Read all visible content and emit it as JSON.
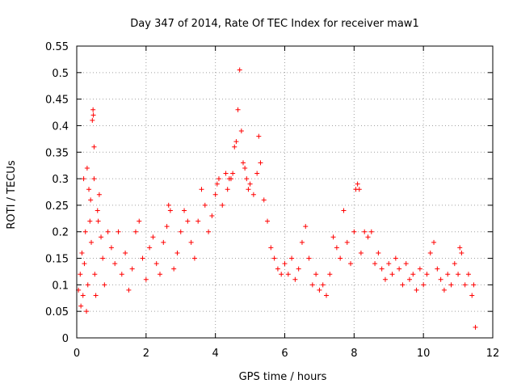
{
  "chart_data": {
    "type": "scatter",
    "title": "Day 347 of 2014, Rate Of TEC Index for receiver maw1",
    "xlabel": "GPS time / hours",
    "ylabel": "ROTI / TECUs",
    "xlim": [
      0,
      12
    ],
    "ylim": [
      0,
      0.55
    ],
    "xticks": [
      "0",
      "2",
      "4",
      "6",
      "8",
      "10",
      "12"
    ],
    "yticks": [
      "0",
      "0.05",
      "0.1",
      "0.15",
      "0.2",
      "0.25",
      "0.3",
      "0.35",
      "0.4",
      "0.45",
      "0.5",
      "0.55"
    ],
    "grid": true,
    "marker": "+",
    "color": "#ff0000",
    "series": [
      {
        "name": "ROTI",
        "points": [
          [
            0.05,
            0.09
          ],
          [
            0.1,
            0.12
          ],
          [
            0.12,
            0.06
          ],
          [
            0.15,
            0.16
          ],
          [
            0.18,
            0.08
          ],
          [
            0.2,
            0.3
          ],
          [
            0.22,
            0.14
          ],
          [
            0.25,
            0.2
          ],
          [
            0.28,
            0.05
          ],
          [
            0.3,
            0.32
          ],
          [
            0.32,
            0.1
          ],
          [
            0.35,
            0.28
          ],
          [
            0.38,
            0.22
          ],
          [
            0.4,
            0.26
          ],
          [
            0.42,
            0.18
          ],
          [
            0.45,
            0.41
          ],
          [
            0.47,
            0.43
          ],
          [
            0.48,
            0.42
          ],
          [
            0.5,
            0.36
          ],
          [
            0.5,
            0.3
          ],
          [
            0.52,
            0.12
          ],
          [
            0.55,
            0.08
          ],
          [
            0.6,
            0.24
          ],
          [
            0.62,
            0.22
          ],
          [
            0.65,
            0.27
          ],
          [
            0.7,
            0.19
          ],
          [
            0.75,
            0.15
          ],
          [
            0.8,
            0.1
          ],
          [
            0.9,
            0.2
          ],
          [
            1.0,
            0.17
          ],
          [
            1.1,
            0.14
          ],
          [
            1.2,
            0.2
          ],
          [
            1.3,
            0.12
          ],
          [
            1.4,
            0.16
          ],
          [
            1.5,
            0.09
          ],
          [
            1.6,
            0.13
          ],
          [
            1.7,
            0.2
          ],
          [
            1.8,
            0.22
          ],
          [
            1.9,
            0.15
          ],
          [
            2.0,
            0.11
          ],
          [
            2.1,
            0.17
          ],
          [
            2.2,
            0.19
          ],
          [
            2.3,
            0.14
          ],
          [
            2.4,
            0.12
          ],
          [
            2.5,
            0.18
          ],
          [
            2.6,
            0.21
          ],
          [
            2.65,
            0.25
          ],
          [
            2.7,
            0.24
          ],
          [
            2.8,
            0.13
          ],
          [
            2.9,
            0.16
          ],
          [
            3.0,
            0.2
          ],
          [
            3.1,
            0.24
          ],
          [
            3.2,
            0.22
          ],
          [
            3.3,
            0.18
          ],
          [
            3.4,
            0.15
          ],
          [
            3.5,
            0.22
          ],
          [
            3.6,
            0.28
          ],
          [
            3.7,
            0.25
          ],
          [
            3.8,
            0.2
          ],
          [
            3.9,
            0.23
          ],
          [
            4.0,
            0.27
          ],
          [
            4.05,
            0.29
          ],
          [
            4.1,
            0.3
          ],
          [
            4.2,
            0.25
          ],
          [
            4.3,
            0.31
          ],
          [
            4.35,
            0.28
          ],
          [
            4.4,
            0.3
          ],
          [
            4.45,
            0.3
          ],
          [
            4.5,
            0.31
          ],
          [
            4.55,
            0.36
          ],
          [
            4.6,
            0.37
          ],
          [
            4.65,
            0.43
          ],
          [
            4.7,
            0.505
          ],
          [
            4.75,
            0.39
          ],
          [
            4.8,
            0.33
          ],
          [
            4.85,
            0.32
          ],
          [
            4.9,
            0.3
          ],
          [
            4.95,
            0.28
          ],
          [
            5.0,
            0.29
          ],
          [
            5.1,
            0.27
          ],
          [
            5.2,
            0.31
          ],
          [
            5.25,
            0.38
          ],
          [
            5.3,
            0.33
          ],
          [
            5.4,
            0.26
          ],
          [
            5.5,
            0.22
          ],
          [
            5.6,
            0.17
          ],
          [
            5.7,
            0.15
          ],
          [
            5.8,
            0.13
          ],
          [
            5.9,
            0.12
          ],
          [
            6.0,
            0.14
          ],
          [
            6.1,
            0.12
          ],
          [
            6.2,
            0.15
          ],
          [
            6.3,
            0.11
          ],
          [
            6.4,
            0.13
          ],
          [
            6.5,
            0.18
          ],
          [
            6.6,
            0.21
          ],
          [
            6.7,
            0.15
          ],
          [
            6.8,
            0.1
          ],
          [
            6.9,
            0.12
          ],
          [
            7.0,
            0.09
          ],
          [
            7.1,
            0.1
          ],
          [
            7.2,
            0.08
          ],
          [
            7.3,
            0.12
          ],
          [
            7.4,
            0.19
          ],
          [
            7.5,
            0.17
          ],
          [
            7.6,
            0.15
          ],
          [
            7.7,
            0.24
          ],
          [
            7.8,
            0.18
          ],
          [
            7.9,
            0.14
          ],
          [
            8.0,
            0.2
          ],
          [
            8.05,
            0.28
          ],
          [
            8.1,
            0.29
          ],
          [
            8.15,
            0.28
          ],
          [
            8.2,
            0.16
          ],
          [
            8.3,
            0.2
          ],
          [
            8.4,
            0.19
          ],
          [
            8.5,
            0.2
          ],
          [
            8.6,
            0.14
          ],
          [
            8.7,
            0.16
          ],
          [
            8.8,
            0.13
          ],
          [
            8.9,
            0.11
          ],
          [
            9.0,
            0.14
          ],
          [
            9.1,
            0.12
          ],
          [
            9.2,
            0.15
          ],
          [
            9.3,
            0.13
          ],
          [
            9.4,
            0.1
          ],
          [
            9.5,
            0.14
          ],
          [
            9.6,
            0.11
          ],
          [
            9.7,
            0.12
          ],
          [
            9.8,
            0.09
          ],
          [
            9.9,
            0.13
          ],
          [
            10.0,
            0.1
          ],
          [
            10.1,
            0.12
          ],
          [
            10.2,
            0.16
          ],
          [
            10.3,
            0.18
          ],
          [
            10.4,
            0.13
          ],
          [
            10.5,
            0.11
          ],
          [
            10.6,
            0.09
          ],
          [
            10.7,
            0.12
          ],
          [
            10.8,
            0.1
          ],
          [
            10.9,
            0.14
          ],
          [
            11.0,
            0.12
          ],
          [
            11.05,
            0.17
          ],
          [
            11.1,
            0.16
          ],
          [
            11.2,
            0.1
          ],
          [
            11.3,
            0.12
          ],
          [
            11.4,
            0.08
          ],
          [
            11.45,
            0.1
          ],
          [
            11.5,
            0.02
          ]
        ]
      }
    ]
  }
}
